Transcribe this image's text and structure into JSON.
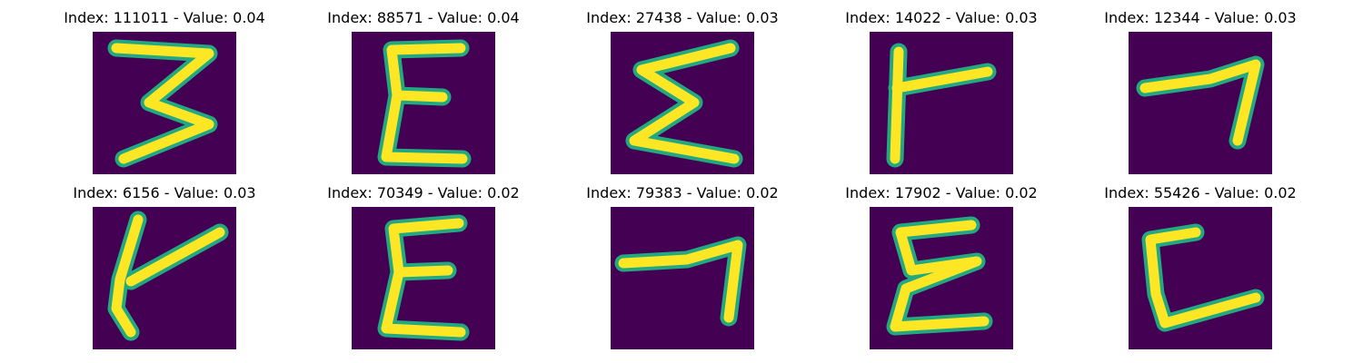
{
  "figure": {
    "background": "#ffffff",
    "colormap": "viridis",
    "panels": [
      {
        "index_label": "Index: 111011 - Value: 0.04",
        "index": 111011,
        "value": 0.04,
        "glyph": "three"
      },
      {
        "index_label": "Index: 88571 - Value: 0.04",
        "index": 88571,
        "value": 0.04,
        "glyph": "epsilon"
      },
      {
        "index_label": "Index: 27438 - Value: 0.03",
        "index": 27438,
        "value": 0.03,
        "glyph": "sigma"
      },
      {
        "index_label": "Index: 14022 - Value: 0.03",
        "index": 14022,
        "value": 0.03,
        "glyph": "gamma-stroke"
      },
      {
        "index_label": "Index: 12344 - Value: 0.03",
        "index": 12344,
        "value": 0.03,
        "glyph": "seven"
      },
      {
        "index_label": "Index: 6156 - Value: 0.03",
        "index": 6156,
        "value": 0.03,
        "glyph": "gamma-stroke-slanted"
      },
      {
        "index_label": "Index: 70349 - Value: 0.02",
        "index": 70349,
        "value": 0.02,
        "glyph": "epsilon"
      },
      {
        "index_label": "Index: 79383 - Value: 0.02",
        "index": 79383,
        "value": 0.02,
        "glyph": "seven-wide"
      },
      {
        "index_label": "Index: 17902 - Value: 0.02",
        "index": 17902,
        "value": 0.02,
        "glyph": "epsilon-loop"
      },
      {
        "index_label": "Index: 55426 - Value: 0.02",
        "index": 55426,
        "value": 0.02,
        "glyph": "c-square"
      }
    ]
  }
}
